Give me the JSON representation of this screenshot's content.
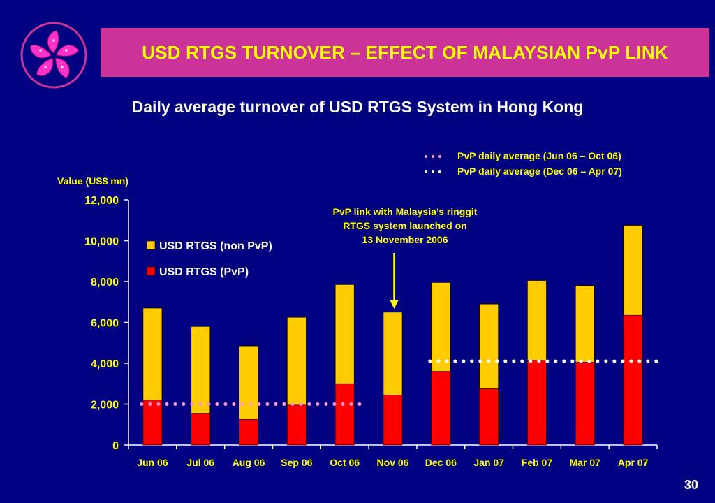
{
  "title": "USD RTGS TURNOVER – EFFECT OF MALAYSIAN PvP LINK",
  "subtitle": "Daily average turnover of USD RTGS System in Hong Kong",
  "slide_number": "30",
  "logo_icon": "bauhinia-flower-icon",
  "colors": {
    "background": "#000080",
    "title_bar": "#cc3399",
    "title_text": "#ffff00",
    "non_pvp": "#ffcc00",
    "pvp": "#ff0000",
    "pvp_avg_1": "#ff99cc",
    "pvp_avg_2": "#ffffff"
  },
  "chart_data": {
    "type": "bar",
    "stacked": true,
    "ylabel": "Value (US$ mn)",
    "ylim": [
      0,
      12000
    ],
    "yticks": [
      0,
      2000,
      4000,
      6000,
      8000,
      10000,
      12000
    ],
    "ytick_labels": [
      "0",
      "2,000",
      "4,000",
      "6,000",
      "8,000",
      "10,000",
      "12,000"
    ],
    "categories": [
      "Jun 06",
      "Jul 06",
      "Aug 06",
      "Sep 06",
      "Oct 06",
      "Nov 06",
      "Dec 06",
      "Jan 07",
      "Feb 07",
      "Mar 07",
      "Apr 07"
    ],
    "series": [
      {
        "name": "USD RTGS (PvP)",
        "values": [
          2200,
          1550,
          1250,
          1950,
          3000,
          2450,
          3600,
          2750,
          4150,
          4050,
          6350
        ]
      },
      {
        "name": "USD RTGS (non PvP)",
        "values": [
          4500,
          4250,
          3600,
          4300,
          4850,
          4050,
          4350,
          4150,
          3900,
          3750,
          4400
        ]
      }
    ],
    "reference_lines": [
      {
        "name": "PvP daily average (Jun 06 – Oct 06)",
        "value": 2000,
        "from": "Jun 06",
        "to": "Oct 06"
      },
      {
        "name": "PvP daily average (Dec 06 – Apr 07)",
        "value": 4100,
        "from": "Dec 06",
        "to": "Apr 07"
      }
    ],
    "annotation": {
      "lines": [
        "PvP link with Malaysia’s ringgit",
        "RTGS system launched on",
        "13 November 2006"
      ],
      "points_to": "Nov 06"
    },
    "legend_placement": "top-left"
  }
}
